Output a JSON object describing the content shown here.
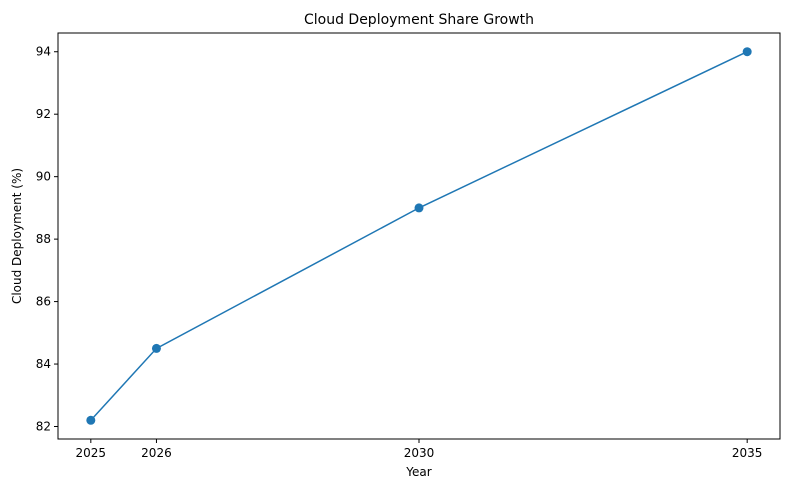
{
  "chart_data": {
    "type": "line",
    "title": "Cloud Deployment Share Growth",
    "xlabel": "Year",
    "ylabel": "Cloud Deployment (%)",
    "x": [
      2025,
      2026,
      2030,
      2035
    ],
    "series": [
      {
        "name": "Cloud Deployment",
        "values": [
          82.2,
          84.5,
          89.0,
          94.0
        ],
        "color": "#1f77b4",
        "marker": "circle"
      }
    ],
    "xticks": [
      "2025",
      "2026",
      "2030",
      "2035"
    ],
    "yticks": [
      "82",
      "84",
      "86",
      "88",
      "90",
      "92",
      "94"
    ],
    "ylim": [
      81.6,
      94.6
    ],
    "xlim": [
      2024.5,
      2035.5
    ],
    "grid": false,
    "legend": null
  }
}
